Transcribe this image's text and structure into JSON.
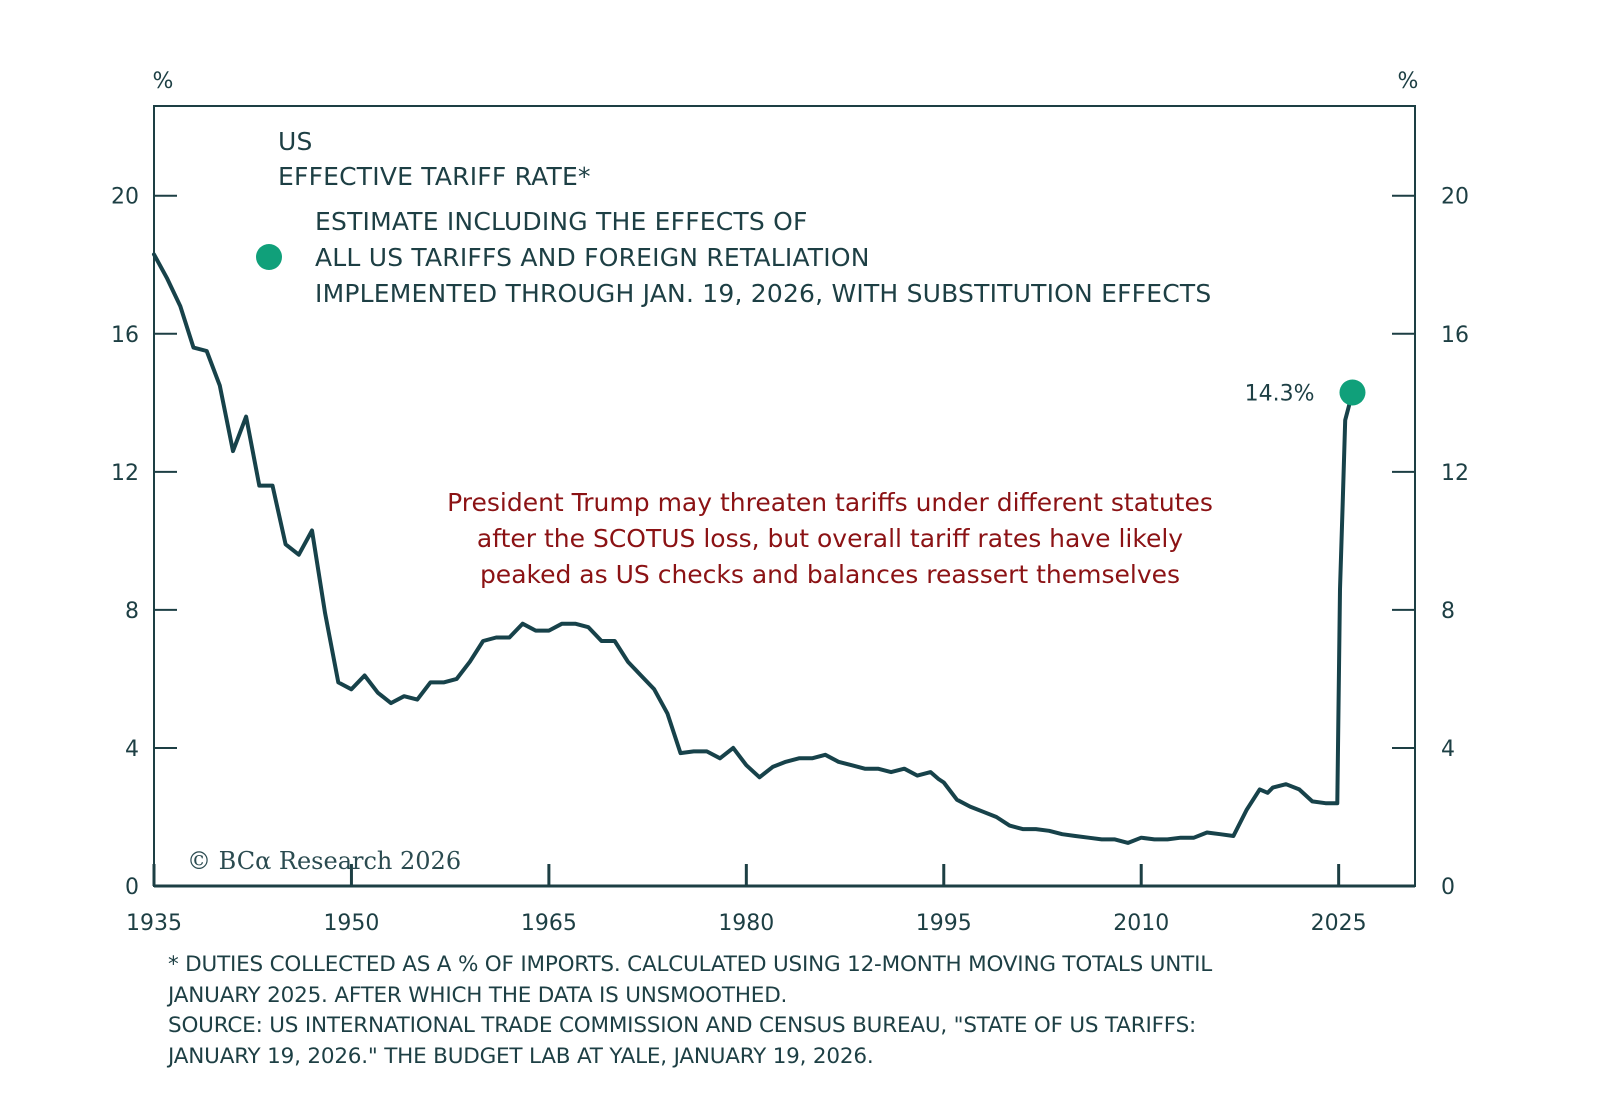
{
  "chart_data": {
    "type": "line",
    "title": "US EFFECTIVE TARIFF RATE*",
    "title_lines": [
      "US",
      "EFFECTIVE TARIFF RATE*"
    ],
    "xlabel": "",
    "ylabel": "%",
    "ylabel_right": "%",
    "xlim": [
      1935,
      2030.8
    ],
    "ylim": [
      0,
      22.6
    ],
    "x_ticks": [
      1935,
      1950,
      1965,
      1980,
      1995,
      2010,
      2025
    ],
    "x_tick_labels": [
      "1935",
      "1950",
      "1965",
      "1980",
      "1995",
      "2010",
      "2025"
    ],
    "y_ticks": [
      0,
      4,
      8,
      12,
      16,
      20
    ],
    "y_tick_labels": [
      "0",
      "4",
      "8",
      "12",
      "16",
      "20"
    ],
    "grid": false,
    "legend_placement": "top-left",
    "series": [
      {
        "name": "US effective tariff rate",
        "color": "#17424a",
        "x": [
          1935,
          1936,
          1937,
          1938,
          1939,
          1940,
          1941,
          1942,
          1943,
          1944,
          1945,
          1946,
          1947,
          1948,
          1949,
          1950,
          1951,
          1952,
          1953,
          1954,
          1955,
          1956,
          1957,
          1958,
          1959,
          1960,
          1961,
          1962,
          1963,
          1964,
          1965,
          1966,
          1967,
          1968,
          1969,
          1970,
          1971,
          1972,
          1973,
          1974,
          1975,
          1976,
          1977,
          1978,
          1979,
          1980,
          1981,
          1982,
          1983,
          1984,
          1985,
          1986,
          1987,
          1988,
          1989,
          1990,
          1991,
          1992,
          1993,
          1994,
          1994.6,
          1995,
          1996,
          1997,
          1998,
          1999,
          2000,
          2001,
          2002,
          2003,
          2004,
          2005,
          2006,
          2007,
          2008,
          2009,
          2010,
          2011,
          2012,
          2013,
          2014,
          2015,
          2016,
          2017,
          2018,
          2019,
          2019.6,
          2020,
          2021,
          2022,
          2023,
          2024,
          2024.9,
          2025.1,
          2025.3,
          2025.5,
          2026.05
        ],
        "y": [
          18.3,
          17.6,
          16.8,
          15.6,
          15.5,
          14.5,
          12.6,
          13.6,
          11.6,
          11.6,
          9.9,
          9.6,
          10.3,
          7.9,
          5.9,
          5.7,
          6.1,
          5.6,
          5.3,
          5.5,
          5.4,
          5.9,
          5.9,
          6.0,
          6.5,
          7.1,
          7.2,
          7.2,
          7.6,
          7.4,
          7.4,
          7.6,
          7.6,
          7.5,
          7.1,
          7.1,
          6.5,
          6.1,
          5.7,
          5.0,
          3.85,
          3.9,
          3.9,
          3.7,
          4.0,
          3.5,
          3.15,
          3.45,
          3.6,
          3.7,
          3.7,
          3.8,
          3.6,
          3.5,
          3.4,
          3.4,
          3.3,
          3.4,
          3.2,
          3.3,
          3.1,
          3.0,
          2.5,
          2.3,
          2.15,
          2.0,
          1.75,
          1.65,
          1.65,
          1.6,
          1.5,
          1.45,
          1.4,
          1.35,
          1.35,
          1.25,
          1.4,
          1.35,
          1.35,
          1.4,
          1.4,
          1.55,
          1.5,
          1.45,
          2.2,
          2.8,
          2.7,
          2.85,
          2.95,
          2.8,
          2.45,
          2.4,
          2.4,
          8.6,
          11.0,
          13.5,
          14.3
        ]
      },
      {
        "name": "ESTIMATE INCLUDING THE EFFECTS OF ALL US TARIFFS AND FOREIGN RETALIATION IMPLEMENTED THROUGH JAN. 19, 2026, WITH SUBSTITUTION EFFECTS",
        "type": "scatter",
        "color": "#10a07a",
        "x": [
          2026.05
        ],
        "y": [
          14.3
        ]
      }
    ],
    "legend": [
      {
        "marker": "circle",
        "color": "#10a07a",
        "lines": [
          "ESTIMATE INCLUDING THE EFFECTS OF",
          "ALL US TARIFFS AND FOREIGN RETALIATION",
          "IMPLEMENTED THROUGH JAN. 19, 2026, WITH SUBSTITUTION EFFECTS"
        ]
      }
    ],
    "annotations": [
      {
        "text": "14.3%",
        "target_x": 2026.05,
        "target_y": 14.3
      },
      {
        "text": "President Trump may threaten tariffs under different statutes after the SCOTUS loss, but overall tariff rates have likely peaked as US checks and balances reassert themselves",
        "lines": [
          "President Trump may threaten tariffs under different statutes",
          "after the SCOTUS loss, but overall tariff rates have likely",
          "peaked as US checks and balances reassert themselves"
        ],
        "color": "#8b1214"
      }
    ]
  },
  "colors": {
    "line": "#17424a",
    "axis": "#1d3f44",
    "accent_dot": "#10a07a",
    "annotation": "#8b1214"
  },
  "copyright": "© BCα Research 2026",
  "footnotes": [
    "*  DUTIES COLLECTED AS A % OF IMPORTS. CALCULATED USING 12-MONTH MOVING TOTALS UNTIL",
    "JANUARY 2025. AFTER WHICH THE DATA IS UNSMOOTHED.",
    "SOURCE: US INTERNATIONAL TRADE COMMISSION AND CENSUS BUREAU, \"STATE OF US TARIFFS:",
    "JANUARY 19, 2026.\" THE BUDGET LAB AT YALE, JANUARY 19, 2026."
  ]
}
